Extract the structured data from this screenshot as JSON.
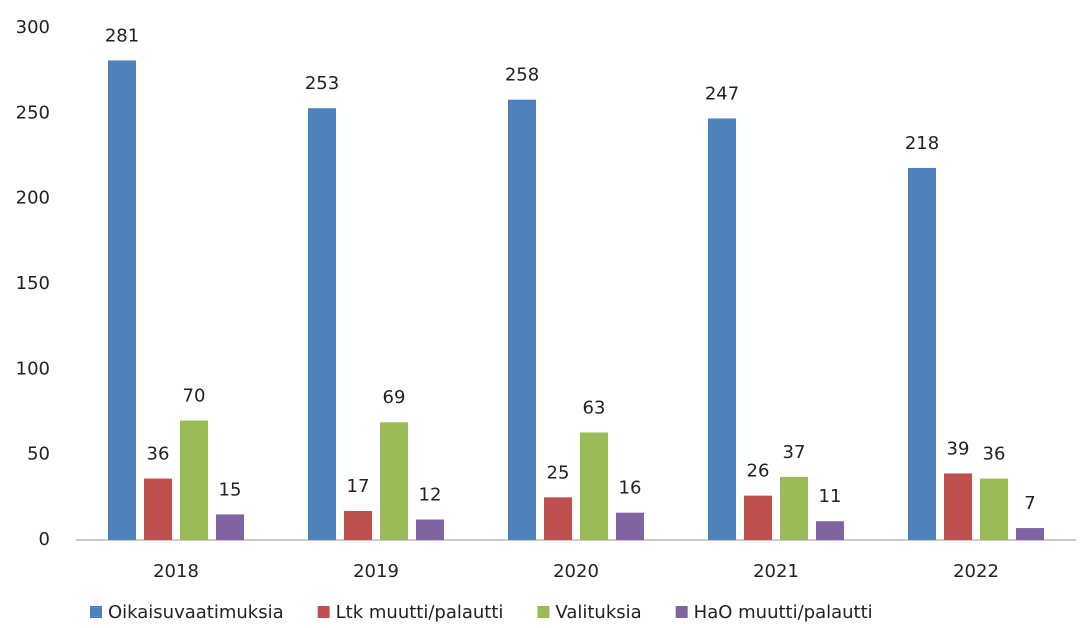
{
  "chart_data": {
    "type": "bar",
    "categories": [
      "2018",
      "2019",
      "2020",
      "2021",
      "2022"
    ],
    "series": [
      {
        "name": "Oikaisuvaatimuksia",
        "color": "#4f81bd",
        "values": [
          281,
          253,
          258,
          247,
          218
        ]
      },
      {
        "name": "Ltk muutti/palautti",
        "color": "#c0504d",
        "values": [
          36,
          17,
          25,
          26,
          39
        ]
      },
      {
        "name": "Valituksia",
        "color": "#9bbb59",
        "values": [
          70,
          69,
          63,
          37,
          36
        ]
      },
      {
        "name": "HaO muutti/palautti",
        "color": "#8064a2",
        "values": [
          15,
          12,
          16,
          11,
          7
        ]
      }
    ],
    "ylim": [
      0,
      300
    ],
    "yticks": [
      0,
      50,
      100,
      150,
      200,
      250,
      300
    ],
    "grid": false,
    "legend": "bottom"
  }
}
